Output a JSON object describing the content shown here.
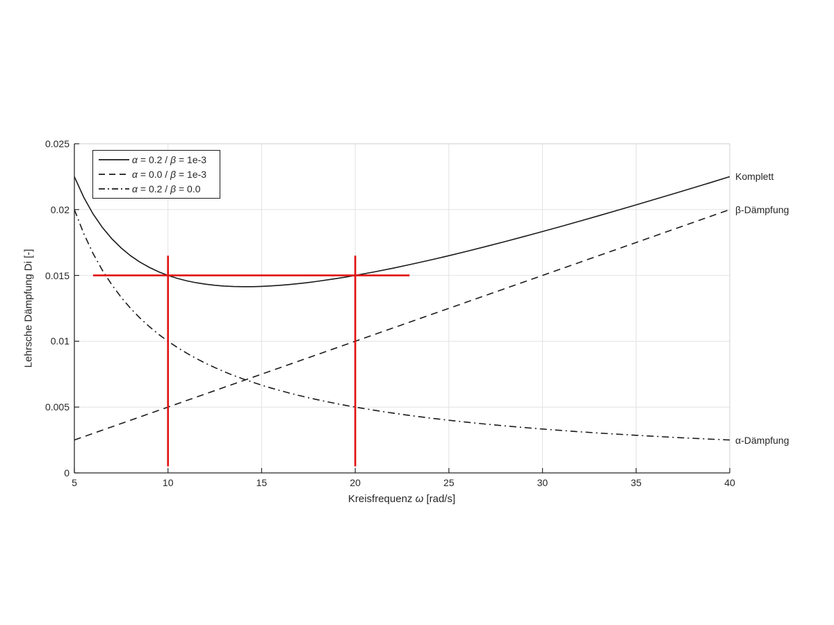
{
  "chart_data": {
    "type": "line",
    "title": "",
    "xlabel": {
      "pre": "Kreisfrequenz ",
      "omega": "ω",
      "post": " [rad/s]"
    },
    "ylabel": "Lehrsche Dämpfung Di [-]",
    "xlim": [
      5,
      40
    ],
    "ylim": [
      0,
      0.025
    ],
    "xticks": [
      5,
      10,
      15,
      20,
      25,
      30,
      35,
      40
    ],
    "xtick_labels": [
      "5",
      "10",
      "15",
      "20",
      "25",
      "30",
      "35",
      "40"
    ],
    "yticks": [
      0,
      0.005,
      0.01,
      0.015,
      0.02,
      0.025
    ],
    "ytick_labels": [
      "0",
      "0.005",
      "0.01",
      "0.015",
      "0.02",
      "0.025"
    ],
    "grid": true,
    "legend": {
      "position": "northwest",
      "entries": [
        {
          "style": "solid",
          "sym1": "α",
          "mid": " = 0.2 / ",
          "sym2": "β",
          "tail": " = 1e-3"
        },
        {
          "style": "dashed",
          "sym1": "α",
          "mid": " = 0.0 / ",
          "sym2": "β",
          "tail": " = 1e-3"
        },
        {
          "style": "dashdot",
          "sym1": "α",
          "mid": " = 0.2 / ",
          "sym2": "β",
          "tail": " = 0.0"
        }
      ]
    },
    "series": [
      {
        "name": "Komplett",
        "style": "solid",
        "color": "#1a1a1a",
        "x": [
          5,
          5.5,
          6,
          6.5,
          7,
          7.5,
          8,
          8.5,
          9,
          9.5,
          10,
          10.5,
          11,
          11.5,
          12,
          12.5,
          13,
          13.5,
          14,
          14.5,
          15,
          15.5,
          16,
          16.5,
          17,
          17.5,
          18,
          18.5,
          19,
          19.5,
          20,
          21,
          22,
          23,
          24,
          25,
          26,
          27,
          28,
          29,
          30,
          31,
          32,
          33,
          34,
          35,
          36,
          37,
          38,
          39,
          40
        ],
        "y": [
          0.0225,
          0.020932,
          0.019667,
          0.018635,
          0.017786,
          0.017083,
          0.0165,
          0.016015,
          0.015611,
          0.015276,
          0.015,
          0.014774,
          0.014591,
          0.014446,
          0.014333,
          0.01425,
          0.014192,
          0.014157,
          0.014143,
          0.014147,
          0.014167,
          0.014202,
          0.01425,
          0.014311,
          0.014382,
          0.014464,
          0.014556,
          0.014655,
          0.014763,
          0.014878,
          0.015,
          0.015262,
          0.015545,
          0.015848,
          0.016167,
          0.0165,
          0.016846,
          0.017204,
          0.017571,
          0.017948,
          0.018333,
          0.018726,
          0.019125,
          0.01953,
          0.019941,
          0.020357,
          0.020778,
          0.021203,
          0.021632,
          0.022064,
          0.0225
        ]
      },
      {
        "name": "β-Dämpfung",
        "style": "dashed",
        "color": "#1a1a1a",
        "x": [
          5,
          10,
          15,
          20,
          25,
          30,
          35,
          40
        ],
        "y": [
          0.0025,
          0.005,
          0.0075,
          0.01,
          0.0125,
          0.015,
          0.0175,
          0.02
        ]
      },
      {
        "name": "α-Dämpfung",
        "style": "dashdot",
        "color": "#1a1a1a",
        "x": [
          5,
          5.5,
          6,
          6.5,
          7,
          7.5,
          8,
          8.5,
          9,
          9.5,
          10,
          10.5,
          11,
          11.5,
          12,
          12.5,
          13,
          13.5,
          14,
          14.5,
          15,
          15.5,
          16,
          16.5,
          17,
          17.5,
          18,
          18.5,
          19,
          19.5,
          20,
          21,
          22,
          23,
          24,
          25,
          26,
          27,
          28,
          29,
          30,
          31,
          32,
          33,
          34,
          35,
          36,
          37,
          38,
          39,
          40
        ],
        "y": [
          0.02,
          0.018182,
          0.016667,
          0.015385,
          0.014286,
          0.013333,
          0.0125,
          0.011765,
          0.011111,
          0.010526,
          0.01,
          0.009524,
          0.009091,
          0.008696,
          0.008333,
          0.008,
          0.007692,
          0.007407,
          0.007143,
          0.006897,
          0.006667,
          0.006452,
          0.00625,
          0.006061,
          0.005882,
          0.005714,
          0.005556,
          0.005405,
          0.005263,
          0.005128,
          0.005,
          0.004762,
          0.004545,
          0.004348,
          0.004167,
          0.004,
          0.003846,
          0.003704,
          0.003571,
          0.003448,
          0.003333,
          0.003226,
          0.003125,
          0.00303,
          0.002941,
          0.002857,
          0.002778,
          0.002703,
          0.002632,
          0.002564,
          0.0025
        ]
      }
    ],
    "end_labels": [
      {
        "text": "Komplett",
        "y": 0.0225
      },
      {
        "text": "β-Dämpfung",
        "y": 0.02
      },
      {
        "text": "α-Dämpfung",
        "y": 0.0025
      }
    ],
    "annotations": [
      {
        "type": "hline",
        "y": 0.015,
        "x1": 6.0,
        "x2": 22.9
      },
      {
        "type": "vline",
        "x": 10,
        "y1": 0.0005,
        "y2": 0.0165
      },
      {
        "type": "vline",
        "x": 20,
        "y1": 0.0005,
        "y2": 0.0165
      }
    ],
    "annotation_color": "#e01010",
    "colors": {
      "grid": "#e2e2e2",
      "box_light": "#d8d8d8",
      "axis": "#262626",
      "curve": "#1a1a1a",
      "text": "#262626"
    }
  }
}
